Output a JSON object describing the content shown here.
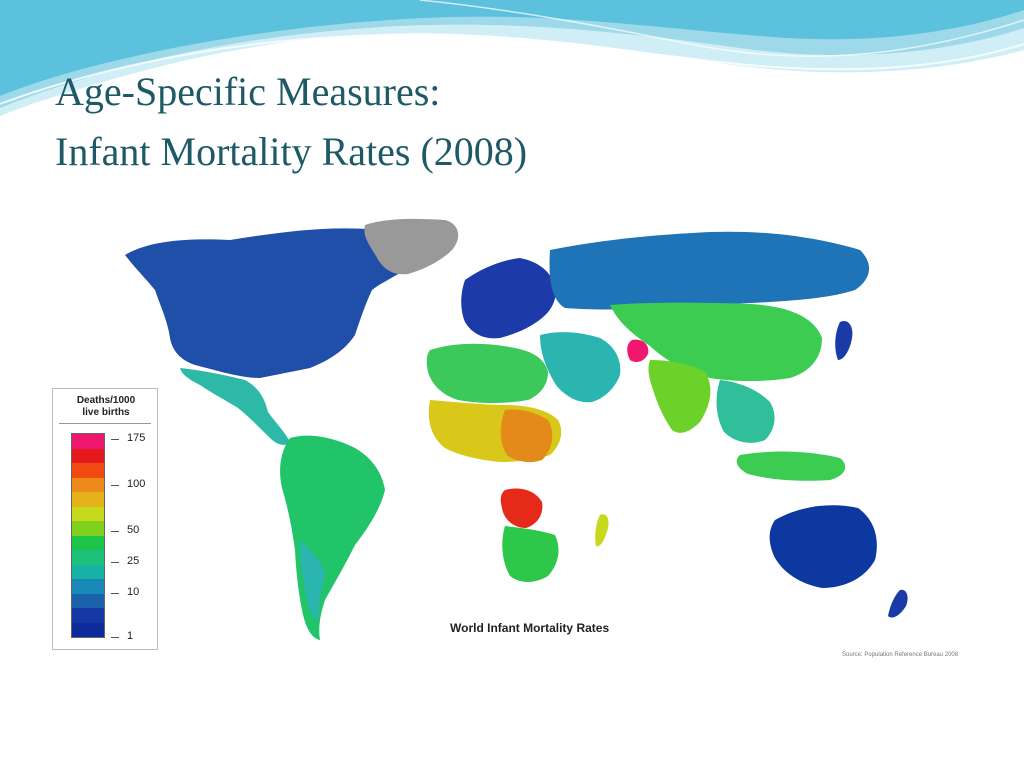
{
  "slide": {
    "title_line1": "Age-Specific Measures:",
    "title_line2": "Infant Mortality Rates (2008)",
    "theme_color": "#1e5a66",
    "wave_colors": [
      "#9ed9ea",
      "#5cc1dd",
      "#cfeef6"
    ]
  },
  "map": {
    "caption": "World Infant Mortality Rates",
    "source": "Source: Population Reference Bureau 2008",
    "regions": [
      {
        "name": "North America",
        "color": "#1f4fa8"
      },
      {
        "name": "Greenland",
        "color": "#999999"
      },
      {
        "name": "Mexico & Central America",
        "color": "#2eb8a8"
      },
      {
        "name": "South America",
        "color": "#22c46a"
      },
      {
        "name": "Europe",
        "color": "#1c3aa8"
      },
      {
        "name": "Russia",
        "color": "#1e74b6"
      },
      {
        "name": "Middle East",
        "color": "#2ab5b0"
      },
      {
        "name": "North Africa",
        "color": "#3cc85a"
      },
      {
        "name": "Sub-Saharan Africa",
        "color": "#d9c81a"
      },
      {
        "name": "Central Africa",
        "color": "#e38a1a"
      },
      {
        "name": "Angola",
        "color": "#e52a1a"
      },
      {
        "name": "Southern Africa",
        "color": "#2dc84a"
      },
      {
        "name": "Afghanistan",
        "color": "#f0186e"
      },
      {
        "name": "Central Asia & China",
        "color": "#3ccc52"
      },
      {
        "name": "South Asia",
        "color": "#6cd22a"
      },
      {
        "name": "Southeast Asia",
        "color": "#2fbf9a"
      },
      {
        "name": "Japan",
        "color": "#1a3aa8"
      },
      {
        "name": "Australia & NZ",
        "color": "#0d38a0"
      }
    ]
  },
  "legend": {
    "title_line1": "Deaths/1000",
    "title_line2": "live births",
    "ticks": [
      "175",
      "100",
      "50",
      "25",
      "10",
      "1"
    ],
    "colors": [
      "#f0186e",
      "#e5191b",
      "#f04a12",
      "#ec8a1c",
      "#e6b21a",
      "#c8d81c",
      "#7ed21e",
      "#1ec34a",
      "#1cc27a",
      "#17b2a6",
      "#1888b6",
      "#1a62ac",
      "#1538a4",
      "#0f2a9a"
    ]
  }
}
